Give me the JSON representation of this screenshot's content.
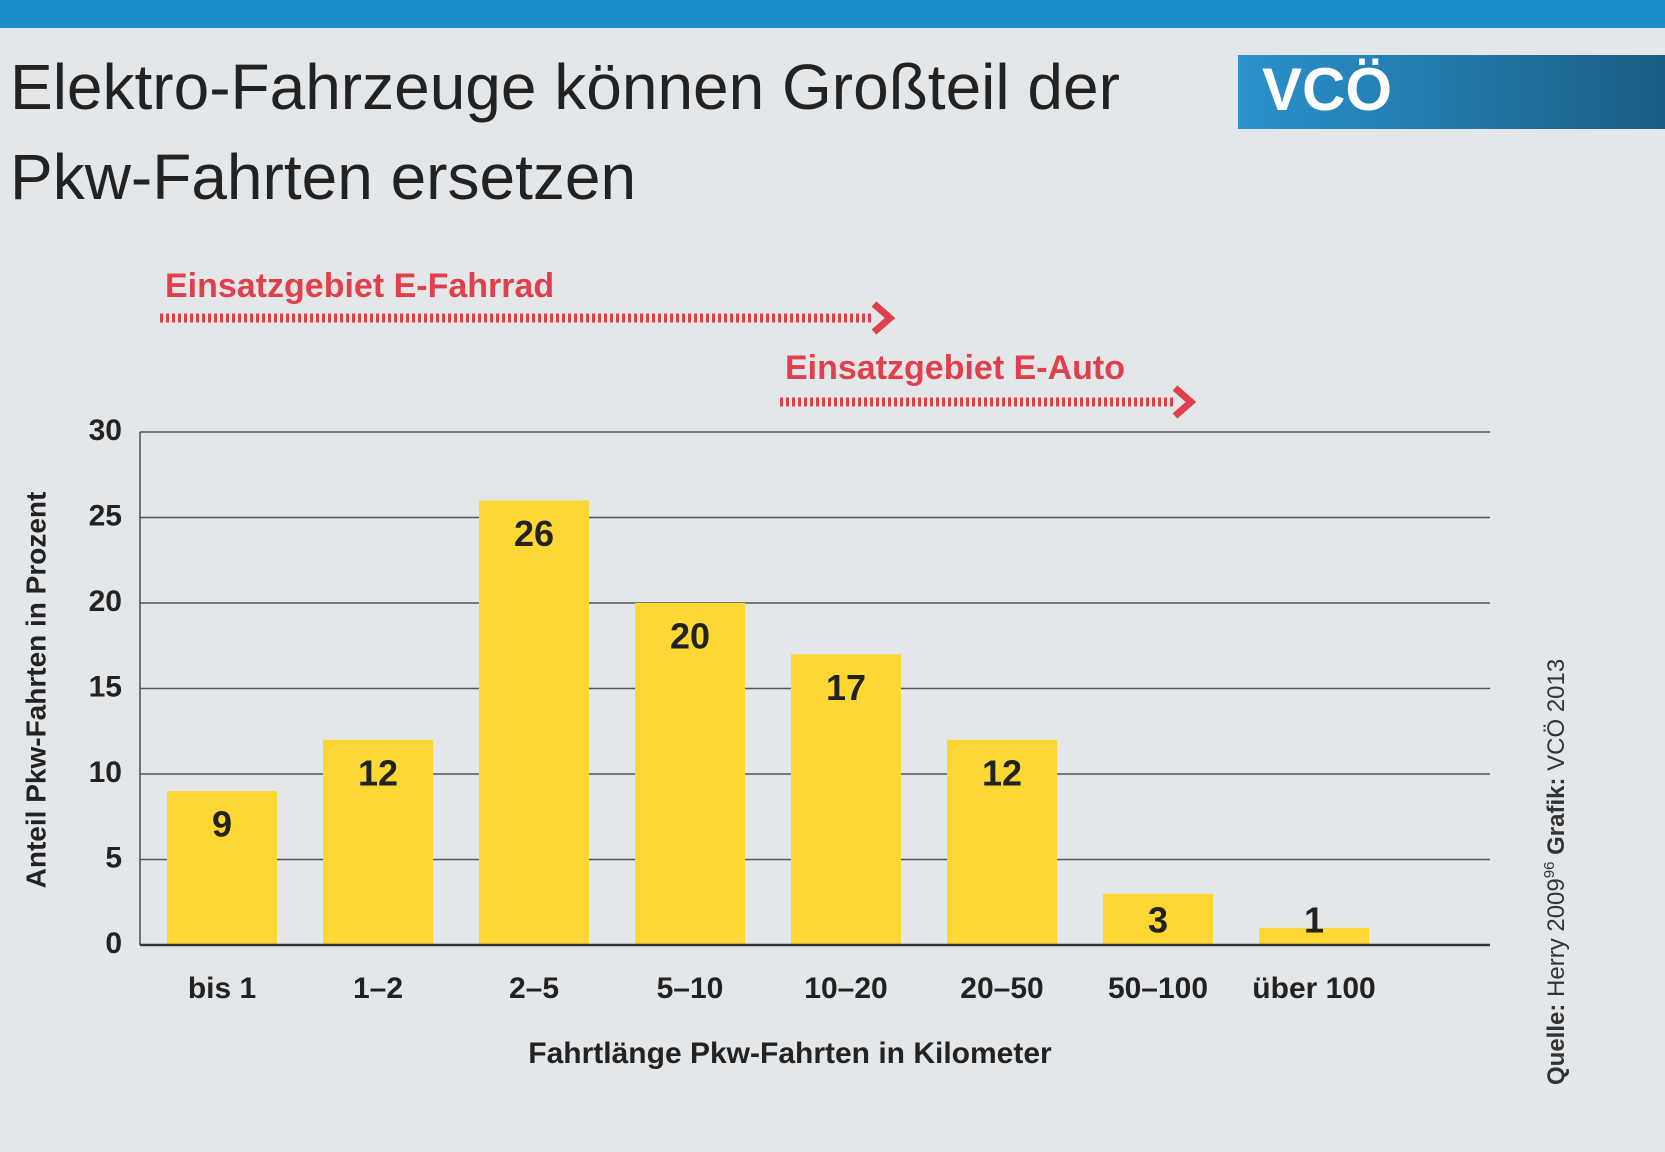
{
  "chart_data": {
    "type": "bar",
    "title": [
      "Elektro-Fahrzeuge können Großteil der",
      "Pkw-Fahrten ersetzen"
    ],
    "logo": "VCÖ",
    "annotations": [
      "Einsatzgebiet E-Fahrrad",
      "Einsatzgebiet E-Auto"
    ],
    "y_label": "Anteil Pkw-Fahrten in Prozent",
    "x_label": "Fahrtlänge Pkw-Fahrten in Kilometer",
    "source": {
      "label": "Quelle:",
      "text": "Herry 2009",
      "superscript": "96"
    },
    "credit": {
      "label": "Grafik:",
      "text": "VCÖ 2013"
    },
    "categories": [
      "bis 1",
      "1–2",
      "2–5",
      "5–10",
      "10–20",
      "20–50",
      "50–100",
      "über 100"
    ],
    "values": [
      9,
      12,
      26,
      20,
      17,
      12,
      3,
      1
    ],
    "color": "#fdd835",
    "ylim": [
      0,
      30
    ],
    "yticks": [
      0,
      5,
      10,
      15,
      20,
      25,
      30
    ],
    "grid": true
  }
}
